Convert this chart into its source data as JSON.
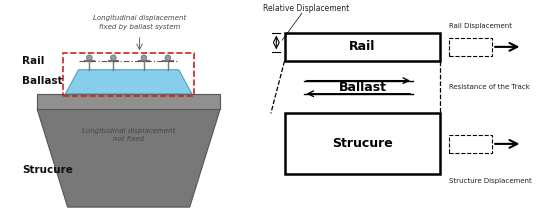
{
  "bg_color": "#ffffff",
  "left": {
    "rail_label": "Rail",
    "ballast_label": "Ballast",
    "structure_label": "Strucure",
    "top_annot": "Longitudinal displacement\nfixed by ballast system",
    "bot_annot": "Longitudinal displacement\nnot fixed",
    "structure_color": "#787878",
    "ballast_color": "#87ceeb",
    "slab_color": "#909090",
    "dashed_rect_color": "#cc2222",
    "clip_color": "#777777",
    "label_color": "#111111",
    "annot_color": "#444444"
  },
  "right": {
    "rail_label": "Rail",
    "ballast_label": "Ballast",
    "structure_label": "Strucure",
    "rail_disp_label": "Rail Displacement",
    "struct_disp_label": "Structure Displacement",
    "rel_disp_label": "Relative Displacement",
    "resist_label": "Resistance of the Track",
    "box_edge": "#000000",
    "arrow_color": "#444444",
    "text_color": "#222222"
  }
}
